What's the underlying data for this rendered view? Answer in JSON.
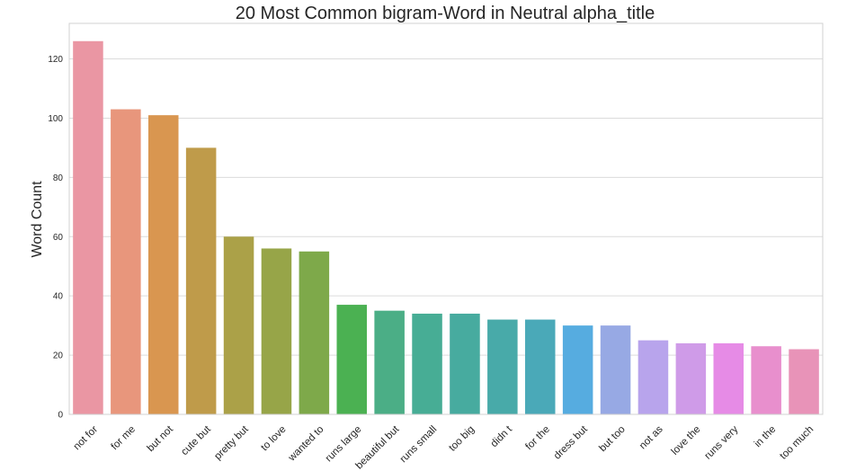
{
  "chart_data": {
    "type": "bar",
    "title": "20 Most Common bigram-Word in Neutral alpha_title",
    "xlabel": "",
    "ylabel": "Word Count",
    "ylim": [
      0,
      132
    ],
    "yticks": [
      0,
      20,
      40,
      60,
      80,
      100,
      120
    ],
    "grid": "horizontal",
    "categories": [
      "not for",
      "for me",
      "but not",
      "cute but",
      "pretty but",
      "to love",
      "wanted to",
      "runs large",
      "beautiful but",
      "runs small",
      "too big",
      "didn t",
      "for the",
      "dress but",
      "but too",
      "not as",
      "love the",
      "runs very",
      "in the",
      "too much"
    ],
    "values": [
      126,
      103,
      101,
      90,
      60,
      56,
      55,
      37,
      35,
      34,
      34,
      32,
      32,
      30,
      30,
      25,
      24,
      24,
      23,
      22
    ],
    "colors": [
      "#ea96a3",
      "#e8967c",
      "#d99650",
      "#bf9b4a",
      "#aba148",
      "#97a548",
      "#7ea94a",
      "#4bb152",
      "#4bae86",
      "#47ad95",
      "#47ab9f",
      "#48aaa9",
      "#4aa9b8",
      "#56ace0",
      "#97a9e4",
      "#b8a4ec",
      "#cf9be8",
      "#e68be6",
      "#e88fcd",
      "#e893b8"
    ]
  }
}
